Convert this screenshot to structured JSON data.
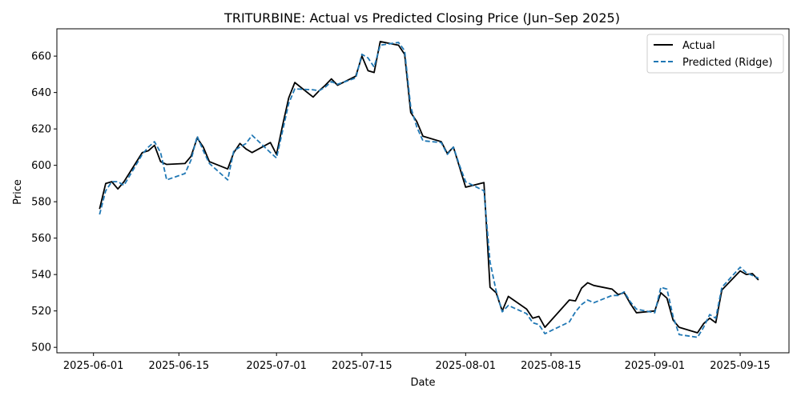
{
  "chart_data": {
    "type": "line",
    "title": "TRITURBINE: Actual vs Predicted Closing Price (Jun–Sep 2025)",
    "xlabel": "Date",
    "ylabel": "Price",
    "xlim": [
      "2025-05-26",
      "2025-09-23"
    ],
    "ylim": [
      497,
      675
    ],
    "x_ticks": [
      "2025-06-01",
      "2025-06-15",
      "2025-07-01",
      "2025-07-15",
      "2025-08-01",
      "2025-08-15",
      "2025-09-01",
      "2025-09-15"
    ],
    "y_ticks": [
      500,
      520,
      540,
      560,
      580,
      600,
      620,
      640,
      660
    ],
    "grid": false,
    "legend": "top-right",
    "series": [
      {
        "name": "Actual",
        "color": "#000000",
        "style": "solid",
        "points": [
          [
            "2025-06-02",
            576
          ],
          [
            "2025-06-03",
            590
          ],
          [
            "2025-06-04",
            591
          ],
          [
            "2025-06-05",
            587
          ],
          [
            "2025-06-06",
            591
          ],
          [
            "2025-06-09",
            607
          ],
          [
            "2025-06-10",
            608
          ],
          [
            "2025-06-11",
            611
          ],
          [
            "2025-06-12",
            602
          ],
          [
            "2025-06-13",
            600.5
          ],
          [
            "2025-06-16",
            601
          ],
          [
            "2025-06-17",
            605
          ],
          [
            "2025-06-18",
            615
          ],
          [
            "2025-06-19",
            610
          ],
          [
            "2025-06-20",
            602
          ],
          [
            "2025-06-23",
            598
          ],
          [
            "2025-06-24",
            607
          ],
          [
            "2025-06-25",
            612
          ],
          [
            "2025-06-26",
            609
          ],
          [
            "2025-06-27",
            607
          ],
          [
            "2025-06-30",
            612.5
          ],
          [
            "2025-07-01",
            606
          ],
          [
            "2025-07-02",
            622
          ],
          [
            "2025-07-03",
            637
          ],
          [
            "2025-07-04",
            645.5
          ],
          [
            "2025-07-07",
            637.5
          ],
          [
            "2025-07-08",
            641
          ],
          [
            "2025-07-09",
            644
          ],
          [
            "2025-07-10",
            647.5
          ],
          [
            "2025-07-11",
            644
          ],
          [
            "2025-07-14",
            649
          ],
          [
            "2025-07-15",
            660
          ],
          [
            "2025-07-16",
            652
          ],
          [
            "2025-07-17",
            651
          ],
          [
            "2025-07-18",
            668
          ],
          [
            "2025-07-21",
            666
          ],
          [
            "2025-07-22",
            661
          ],
          [
            "2025-07-23",
            629
          ],
          [
            "2025-07-24",
            624
          ],
          [
            "2025-07-25",
            616
          ],
          [
            "2025-07-28",
            613
          ],
          [
            "2025-07-29",
            606.5
          ],
          [
            "2025-07-30",
            610
          ],
          [
            "2025-07-31",
            599
          ],
          [
            "2025-08-01",
            588
          ],
          [
            "2025-08-04",
            590.5
          ],
          [
            "2025-08-05",
            533
          ],
          [
            "2025-08-06",
            530
          ],
          [
            "2025-08-07",
            520
          ],
          [
            "2025-08-08",
            528
          ],
          [
            "2025-08-11",
            521
          ],
          [
            "2025-08-12",
            516
          ],
          [
            "2025-08-13",
            517
          ],
          [
            "2025-08-14",
            511
          ],
          [
            "2025-08-18",
            526
          ],
          [
            "2025-08-19",
            525.5
          ],
          [
            "2025-08-20",
            532.5
          ],
          [
            "2025-08-21",
            535.5
          ],
          [
            "2025-08-22",
            534
          ],
          [
            "2025-08-25",
            532
          ],
          [
            "2025-08-26",
            529
          ],
          [
            "2025-08-27",
            530
          ],
          [
            "2025-08-28",
            524
          ],
          [
            "2025-08-29",
            519
          ],
          [
            "2025-09-01",
            520
          ],
          [
            "2025-09-02",
            530
          ],
          [
            "2025-09-03",
            527
          ],
          [
            "2025-09-04",
            515
          ],
          [
            "2025-09-05",
            511
          ],
          [
            "2025-09-08",
            508
          ],
          [
            "2025-09-09",
            513
          ],
          [
            "2025-09-10",
            516
          ],
          [
            "2025-09-11",
            513.5
          ],
          [
            "2025-09-12",
            531.5
          ],
          [
            "2025-09-15",
            542
          ],
          [
            "2025-09-16",
            540
          ],
          [
            "2025-09-17",
            540.5
          ],
          [
            "2025-09-18",
            537
          ]
        ]
      },
      {
        "name": "Predicted (Ridge)",
        "color": "#1f77b4",
        "style": "dashed",
        "points": [
          [
            "2025-06-02",
            573
          ],
          [
            "2025-06-03",
            586
          ],
          [
            "2025-06-04",
            591
          ],
          [
            "2025-06-05",
            591
          ],
          [
            "2025-06-06",
            589
          ],
          [
            "2025-06-09",
            606
          ],
          [
            "2025-06-10",
            610
          ],
          [
            "2025-06-11",
            613
          ],
          [
            "2025-06-12",
            607
          ],
          [
            "2025-06-13",
            592
          ],
          [
            "2025-06-16",
            595.5
          ],
          [
            "2025-06-17",
            603
          ],
          [
            "2025-06-18",
            616
          ],
          [
            "2025-06-19",
            608
          ],
          [
            "2025-06-20",
            601
          ],
          [
            "2025-06-23",
            592
          ],
          [
            "2025-06-24",
            608
          ],
          [
            "2025-06-25",
            610
          ],
          [
            "2025-06-26",
            612
          ],
          [
            "2025-06-27",
            616.5
          ],
          [
            "2025-06-30",
            607
          ],
          [
            "2025-07-01",
            604
          ],
          [
            "2025-07-02",
            619
          ],
          [
            "2025-07-03",
            634
          ],
          [
            "2025-07-04",
            642
          ],
          [
            "2025-07-07",
            641.5
          ],
          [
            "2025-07-08",
            641
          ],
          [
            "2025-07-09",
            643
          ],
          [
            "2025-07-10",
            646
          ],
          [
            "2025-07-11",
            644.5
          ],
          [
            "2025-07-14",
            648
          ],
          [
            "2025-07-15",
            661
          ],
          [
            "2025-07-16",
            659
          ],
          [
            "2025-07-17",
            654
          ],
          [
            "2025-07-18",
            666
          ],
          [
            "2025-07-21",
            667.5
          ],
          [
            "2025-07-22",
            663
          ],
          [
            "2025-07-23",
            632
          ],
          [
            "2025-07-24",
            621
          ],
          [
            "2025-07-25",
            613.5
          ],
          [
            "2025-07-28",
            612.5
          ],
          [
            "2025-07-29",
            606
          ],
          [
            "2025-07-30",
            610
          ],
          [
            "2025-07-31",
            600
          ],
          [
            "2025-08-01",
            591
          ],
          [
            "2025-08-04",
            586
          ],
          [
            "2025-08-05",
            547
          ],
          [
            "2025-08-06",
            531
          ],
          [
            "2025-08-07",
            519.5
          ],
          [
            "2025-08-08",
            523
          ],
          [
            "2025-08-11",
            518.5
          ],
          [
            "2025-08-12",
            513.5
          ],
          [
            "2025-08-13",
            512.5
          ],
          [
            "2025-08-14",
            507.5
          ],
          [
            "2025-08-18",
            514
          ],
          [
            "2025-08-19",
            519.5
          ],
          [
            "2025-08-20",
            523.5
          ],
          [
            "2025-08-21",
            526
          ],
          [
            "2025-08-22",
            524.5
          ],
          [
            "2025-08-25",
            528.5
          ],
          [
            "2025-08-26",
            528.5
          ],
          [
            "2025-08-27",
            530.5
          ],
          [
            "2025-08-28",
            525
          ],
          [
            "2025-08-29",
            521
          ],
          [
            "2025-09-01",
            519
          ],
          [
            "2025-09-02",
            533
          ],
          [
            "2025-09-03",
            532
          ],
          [
            "2025-09-04",
            517
          ],
          [
            "2025-09-05",
            507
          ],
          [
            "2025-09-08",
            505.5
          ],
          [
            "2025-09-09",
            511
          ],
          [
            "2025-09-10",
            518
          ],
          [
            "2025-09-11",
            516
          ],
          [
            "2025-09-12",
            533
          ],
          [
            "2025-09-15",
            544
          ],
          [
            "2025-09-16",
            541
          ],
          [
            "2025-09-17",
            539.5
          ],
          [
            "2025-09-18",
            538
          ]
        ]
      }
    ]
  }
}
